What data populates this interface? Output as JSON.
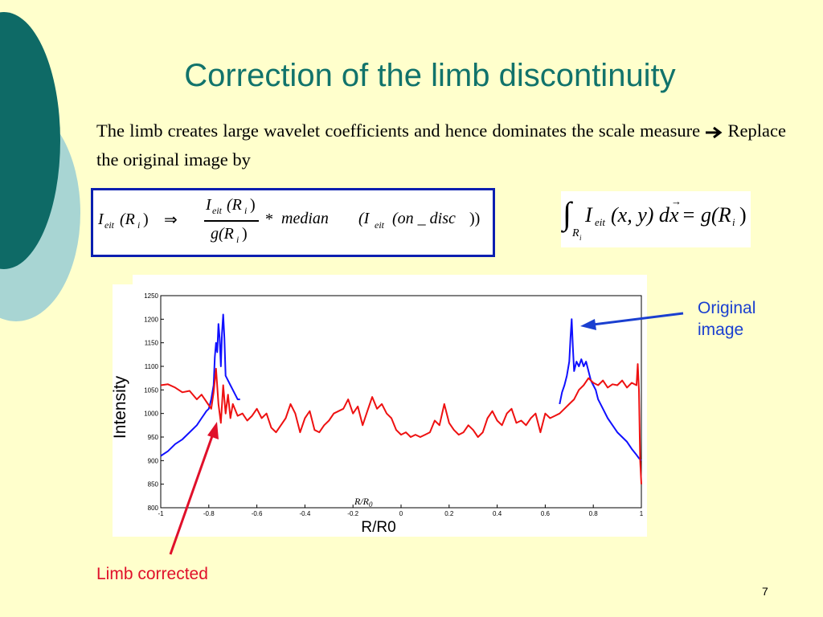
{
  "slide": {
    "title": "Correction of the limb discontinuity",
    "paragraph": "The limb creates large wavelet coefficients and hence dominates the scale measure",
    "paragraph_tail": "Replace the original image by",
    "arrow_icon": "right-arrow-icon",
    "page_number": "7"
  },
  "formula": {
    "lhs_I": "I",
    "lhs_sub": "eit",
    "lhs_arg": "(R",
    "lhs_arg_sub": "i",
    "lhs_close": ")",
    "implies": "⇒",
    "num_I": "I",
    "num_sub": "eit",
    "num_arg": "(R",
    "num_arg_sub": "i",
    "num_close": ")",
    "den": "g(R",
    "den_sub": "i",
    "den_close": ")",
    "times": "*",
    "median": "median",
    "med_open": "(I",
    "med_sub": "eit",
    "med_arg": "(on _ disc",
    "med_close": "))"
  },
  "integral": {
    "symbol": "∫",
    "lower": "R",
    "lower_sub": "i",
    "I": "I",
    "I_sub": "eit",
    "args": "(x, y) d",
    "vec": "x",
    "eq": "= g(R",
    "eq_sub": "i",
    "eq_close": ")"
  },
  "annotations": {
    "original": [
      "Original",
      "image"
    ],
    "limb_corrected": "Limb corrected",
    "colors": {
      "original": "#1a3fd0",
      "limb_corrected": "#e0102a"
    }
  },
  "chart_data": {
    "type": "line",
    "ylabel": "Intensity",
    "xlabel": "R/R0",
    "xlabel_inner": "R/R",
    "xlabel_inner_sub": "0",
    "xlim": [
      -1,
      1
    ],
    "ylim": [
      800,
      1250
    ],
    "xticks": [
      "-1",
      "-0.8",
      "-0.6",
      "-0.4",
      "-0.2",
      "0",
      "0.2",
      "0.4",
      "0.6",
      "0.8",
      "1"
    ],
    "yticks": [
      "800",
      "850",
      "900",
      "950",
      "1000",
      "1050",
      "1100",
      "1150",
      "1200",
      "1250"
    ],
    "series": [
      {
        "name": "Original image",
        "color": "#1010ff",
        "points": [
          [
            -1.0,
            910
          ],
          [
            -0.97,
            920
          ],
          [
            -0.94,
            935
          ],
          [
            -0.91,
            945
          ],
          [
            -0.88,
            960
          ],
          [
            -0.85,
            975
          ],
          [
            -0.83,
            990
          ],
          [
            -0.81,
            1005
          ],
          [
            -0.8,
            1010
          ],
          [
            -0.79,
            1030
          ],
          [
            -0.78,
            1060
          ],
          [
            -0.775,
            1120
          ],
          [
            -0.77,
            1150
          ],
          [
            -0.765,
            1130
          ],
          [
            -0.76,
            1190
          ],
          [
            -0.755,
            1160
          ],
          [
            -0.75,
            1100
          ],
          [
            -0.745,
            1170
          ],
          [
            -0.74,
            1210
          ],
          [
            -0.735,
            1160
          ],
          [
            -0.73,
            1080
          ],
          [
            -0.72,
            1070
          ],
          [
            -0.71,
            1060
          ],
          [
            -0.7,
            1050
          ],
          [
            -0.69,
            1040
          ],
          [
            -0.68,
            1030
          ],
          [
            -0.67,
            1030
          ],
          [
            0.66,
            1020
          ],
          [
            0.67,
            1045
          ],
          [
            0.68,
            1060
          ],
          [
            0.69,
            1080
          ],
          [
            0.7,
            1110
          ],
          [
            0.705,
            1160
          ],
          [
            0.71,
            1200
          ],
          [
            0.715,
            1140
          ],
          [
            0.72,
            1090
          ],
          [
            0.73,
            1110
          ],
          [
            0.74,
            1100
          ],
          [
            0.75,
            1115
          ],
          [
            0.76,
            1100
          ],
          [
            0.77,
            1110
          ],
          [
            0.78,
            1090
          ],
          [
            0.79,
            1070
          ],
          [
            0.8,
            1060
          ],
          [
            0.81,
            1050
          ],
          [
            0.82,
            1030
          ],
          [
            0.84,
            1010
          ],
          [
            0.86,
            990
          ],
          [
            0.88,
            975
          ],
          [
            0.9,
            960
          ],
          [
            0.92,
            950
          ],
          [
            0.94,
            940
          ],
          [
            0.96,
            925
          ],
          [
            0.98,
            912
          ],
          [
            0.99,
            905
          ],
          [
            1.0,
            900
          ]
        ]
      },
      {
        "name": "Limb corrected",
        "color": "#ee1111",
        "points": [
          [
            -1.0,
            1060
          ],
          [
            -0.97,
            1062
          ],
          [
            -0.94,
            1055
          ],
          [
            -0.91,
            1045
          ],
          [
            -0.88,
            1048
          ],
          [
            -0.85,
            1030
          ],
          [
            -0.83,
            1040
          ],
          [
            -0.81,
            1025
          ],
          [
            -0.79,
            1010
          ],
          [
            -0.78,
            1045
          ],
          [
            -0.77,
            1095
          ],
          [
            -0.76,
            1020
          ],
          [
            -0.75,
            980
          ],
          [
            -0.74,
            1060
          ],
          [
            -0.73,
            1000
          ],
          [
            -0.72,
            1040
          ],
          [
            -0.71,
            990
          ],
          [
            -0.7,
            1020
          ],
          [
            -0.68,
            995
          ],
          [
            -0.66,
            1000
          ],
          [
            -0.64,
            985
          ],
          [
            -0.62,
            995
          ],
          [
            -0.6,
            1010
          ],
          [
            -0.58,
            990
          ],
          [
            -0.56,
            1000
          ],
          [
            -0.54,
            970
          ],
          [
            -0.52,
            960
          ],
          [
            -0.5,
            975
          ],
          [
            -0.48,
            990
          ],
          [
            -0.46,
            1020
          ],
          [
            -0.44,
            1000
          ],
          [
            -0.42,
            960
          ],
          [
            -0.4,
            990
          ],
          [
            -0.38,
            1005
          ],
          [
            -0.36,
            965
          ],
          [
            -0.34,
            960
          ],
          [
            -0.32,
            975
          ],
          [
            -0.3,
            985
          ],
          [
            -0.28,
            1000
          ],
          [
            -0.26,
            1005
          ],
          [
            -0.24,
            1010
          ],
          [
            -0.22,
            1030
          ],
          [
            -0.2,
            1000
          ],
          [
            -0.18,
            1015
          ],
          [
            -0.16,
            975
          ],
          [
            -0.14,
            1005
          ],
          [
            -0.12,
            1035
          ],
          [
            -0.1,
            1010
          ],
          [
            -0.08,
            1020
          ],
          [
            -0.06,
            1000
          ],
          [
            -0.04,
            990
          ],
          [
            -0.02,
            965
          ],
          [
            0.0,
            955
          ],
          [
            0.02,
            960
          ],
          [
            0.04,
            950
          ],
          [
            0.06,
            955
          ],
          [
            0.08,
            950
          ],
          [
            0.1,
            955
          ],
          [
            0.12,
            960
          ],
          [
            0.14,
            985
          ],
          [
            0.16,
            975
          ],
          [
            0.18,
            1020
          ],
          [
            0.2,
            980
          ],
          [
            0.22,
            965
          ],
          [
            0.24,
            955
          ],
          [
            0.26,
            960
          ],
          [
            0.28,
            975
          ],
          [
            0.3,
            965
          ],
          [
            0.32,
            950
          ],
          [
            0.34,
            960
          ],
          [
            0.36,
            990
          ],
          [
            0.38,
            1005
          ],
          [
            0.4,
            985
          ],
          [
            0.42,
            975
          ],
          [
            0.44,
            1000
          ],
          [
            0.46,
            1010
          ],
          [
            0.48,
            980
          ],
          [
            0.5,
            985
          ],
          [
            0.52,
            975
          ],
          [
            0.54,
            990
          ],
          [
            0.56,
            1000
          ],
          [
            0.58,
            960
          ],
          [
            0.6,
            1000
          ],
          [
            0.62,
            990
          ],
          [
            0.64,
            995
          ],
          [
            0.66,
            1000
          ],
          [
            0.68,
            1010
          ],
          [
            0.7,
            1020
          ],
          [
            0.72,
            1030
          ],
          [
            0.74,
            1050
          ],
          [
            0.76,
            1060
          ],
          [
            0.78,
            1075
          ],
          [
            0.8,
            1065
          ],
          [
            0.82,
            1060
          ],
          [
            0.84,
            1070
          ],
          [
            0.86,
            1055
          ],
          [
            0.88,
            1062
          ],
          [
            0.9,
            1060
          ],
          [
            0.92,
            1070
          ],
          [
            0.94,
            1055
          ],
          [
            0.96,
            1065
          ],
          [
            0.98,
            1060
          ],
          [
            0.985,
            1105
          ],
          [
            0.99,
            1050
          ],
          [
            0.995,
            900
          ],
          [
            1.0,
            850
          ]
        ]
      }
    ]
  }
}
